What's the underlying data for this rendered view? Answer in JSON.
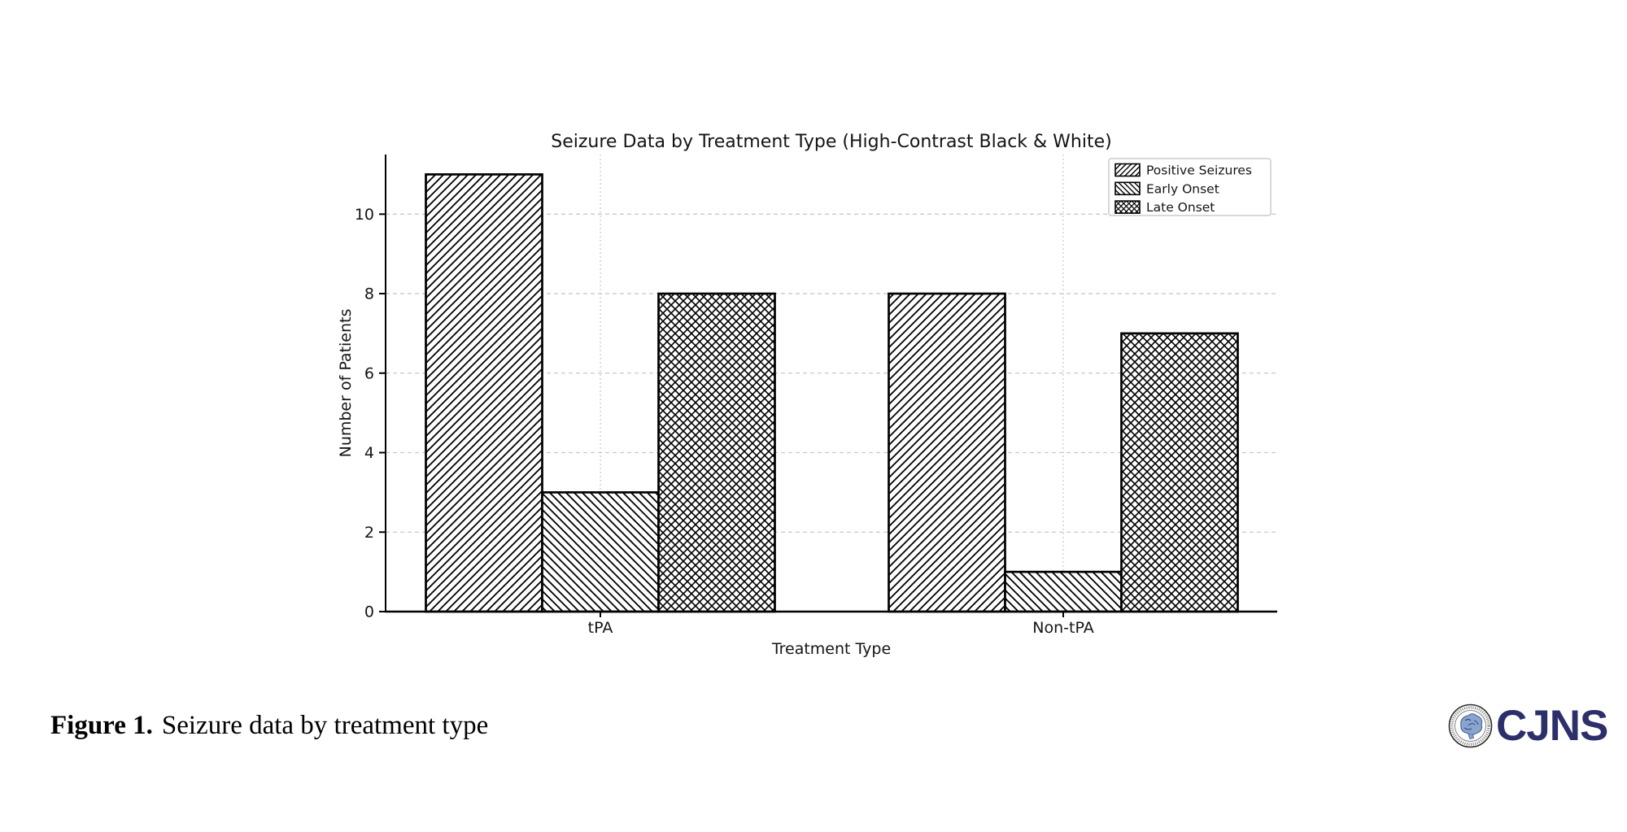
{
  "figure": {
    "caption_label": "Figure 1.",
    "caption_text": "Seizure data by treatment type",
    "logo_text": "CJNS",
    "logo_color": "#2d2f6b"
  },
  "chart_data": {
    "type": "bar",
    "title": "Seizure Data by Treatment Type (High-Contrast Black & White)",
    "xlabel": "Treatment Type",
    "ylabel": "Number of Patients",
    "categories": [
      "tPA",
      "Non-tPA"
    ],
    "series": [
      {
        "name": "Positive Seizures",
        "hatch": "forward",
        "values": [
          11,
          8
        ]
      },
      {
        "name": "Early Onset",
        "hatch": "backward",
        "values": [
          3,
          1
        ]
      },
      {
        "name": "Late Onset",
        "hatch": "cross",
        "values": [
          8,
          7
        ]
      }
    ],
    "yticks": [
      0,
      2,
      4,
      6,
      8,
      10
    ],
    "ylim": [
      0,
      11.5
    ],
    "grid": true,
    "legend_position": "upper right",
    "style": {
      "bar_fill": "#ffffff",
      "bar_edge": "#000000",
      "grid_color": "#c8c8c8",
      "text_color": "#141414",
      "legend_border": "#cccccc"
    }
  }
}
